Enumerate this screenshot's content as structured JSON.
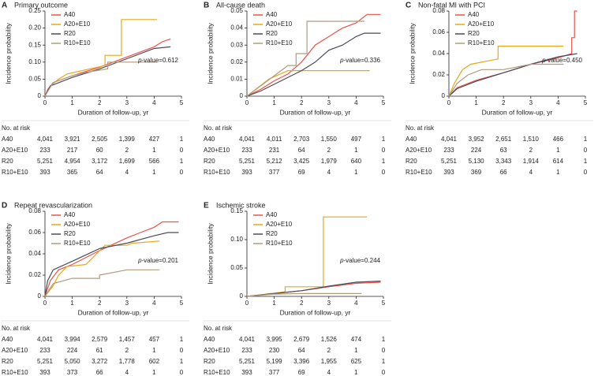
{
  "chart_data": [
    {
      "type": "line",
      "panel": "A",
      "title": "Primary outcome",
      "ylabel": "Incidence probability",
      "xlabel": "Duration of follow-up, yr",
      "xlim": [
        0,
        5
      ],
      "ylim": [
        0,
        0.25
      ],
      "xticks": [
        0,
        1,
        2,
        3,
        4,
        5
      ],
      "yticks": [
        0,
        0.05,
        {
          "value": 0.1,
          "label": "0.10"
        },
        0.15,
        {
          "value": 0.2,
          "label": "0.20"
        },
        0.25
      ],
      "series": [
        {
          "name": "A40",
          "color": "#e8524a",
          "x": [
            0,
            0.1,
            0.3,
            1,
            2,
            3,
            4,
            4.3,
            4.6
          ],
          "values": [
            0,
            0.02,
            0.04,
            0.06,
            0.085,
            0.115,
            0.145,
            0.16,
            0.168
          ]
        },
        {
          "name": "A20+E10",
          "color": "#e6a817",
          "x": [
            0,
            0.2,
            0.5,
            0.8,
            2.2,
            2.2,
            2.8,
            2.8,
            4.1
          ],
          "values": [
            0,
            0.03,
            0.05,
            0.065,
            0.09,
            0.12,
            0.12,
            0.225,
            0.225
          ]
        },
        {
          "name": "R20",
          "color": "#4a4a55",
          "x": [
            0,
            0.2,
            1,
            2,
            3,
            4,
            4.6
          ],
          "values": [
            0,
            0.03,
            0.055,
            0.08,
            0.11,
            0.14,
            0.145
          ]
        },
        {
          "name": "R10+E10",
          "color": "#b09a7e",
          "x": [
            0,
            0.3,
            1,
            1.5,
            2.3,
            2.3,
            4.1
          ],
          "values": [
            0,
            0.04,
            0.06,
            0.07,
            0.08,
            0.1,
            0.1
          ]
        }
      ],
      "annotation_italic": "p",
      "annotation": "-value=0.612",
      "risk_table": {
        "title": "No. at risk",
        "rows": [
          {
            "name": "A40",
            "values": [
              "4,041",
              "3,921",
              "2,505",
              "1,399",
              "427",
              "1"
            ]
          },
          {
            "name": "A20+E10",
            "values": [
              "233",
              "217",
              "60",
              "2",
              "1",
              "0"
            ]
          },
          {
            "name": "R20",
            "values": [
              "5,251",
              "4,954",
              "3,172",
              "1,699",
              "566",
              "1"
            ]
          },
          {
            "name": "R10+E10",
            "values": [
              "393",
              "365",
              "64",
              "4",
              "1",
              "0"
            ]
          }
        ]
      }
    },
    {
      "type": "line",
      "panel": "B",
      "title": "All-cause death",
      "ylabel": "Incidence probability",
      "xlabel": "Duration of follow-up, yr",
      "xlim": [
        0,
        5
      ],
      "ylim": [
        0,
        0.05
      ],
      "xticks": [
        0,
        1,
        2,
        3,
        4,
        5
      ],
      "yticks": [
        0,
        0.01,
        0.02,
        0.03,
        0.04,
        0.05
      ],
      "series": [
        {
          "name": "A40",
          "color": "#e8524a",
          "x": [
            0,
            0.5,
            1,
            1.5,
            2,
            2.5,
            3,
            3.5,
            4,
            4.4,
            4.9
          ],
          "values": [
            0,
            0.004,
            0.009,
            0.013,
            0.02,
            0.03,
            0.035,
            0.04,
            0.043,
            0.048,
            0.048
          ]
        },
        {
          "name": "A20+E10",
          "color": "#e6a817",
          "x": [
            0,
            0.4,
            0.8,
            1.5,
            4.5
          ],
          "values": [
            0,
            0.005,
            0.01,
            0.015,
            0.015
          ]
        },
        {
          "name": "R20",
          "color": "#4a4a55",
          "x": [
            0,
            0.5,
            1,
            2,
            2.5,
            3,
            3.5,
            4,
            4.3,
            4.9
          ],
          "values": [
            0,
            0.003,
            0.007,
            0.015,
            0.02,
            0.027,
            0.03,
            0.035,
            0.037,
            0.037
          ]
        },
        {
          "name": "R10+E10",
          "color": "#b09a7e",
          "x": [
            0,
            0.5,
            1,
            1.5,
            1.8,
            1.8,
            2.2,
            2.2,
            4.3
          ],
          "values": [
            0,
            0.006,
            0.012,
            0.018,
            0.018,
            0.025,
            0.025,
            0.044,
            0.044
          ]
        }
      ],
      "annotation_italic": "p",
      "annotation": "-value=0.336",
      "risk_table": {
        "title": "No. at risk",
        "rows": [
          {
            "name": "A40",
            "values": [
              "4,041",
              "4,011",
              "2,703",
              "1,550",
              "497",
              "1"
            ]
          },
          {
            "name": "A20+E10",
            "values": [
              "233",
              "231",
              "64",
              "2",
              "1",
              "0"
            ]
          },
          {
            "name": "R20",
            "values": [
              "5,251",
              "5,212",
              "3,425",
              "1,979",
              "640",
              "1"
            ]
          },
          {
            "name": "R10+E10",
            "values": [
              "393",
              "377",
              "69",
              "4",
              "1",
              "0"
            ]
          }
        ]
      }
    },
    {
      "type": "line",
      "panel": "C",
      "title": "Non-fatal MI with PCI",
      "ylabel": "Incidence probability",
      "xlabel": "Duration of follow-up, yr",
      "xlim": [
        0,
        5
      ],
      "ylim": [
        0,
        0.08
      ],
      "xticks": [
        0,
        1,
        2,
        3,
        4,
        5
      ],
      "yticks": [
        0,
        0.02,
        0.04,
        0.06,
        0.08
      ],
      "series": [
        {
          "name": "A40",
          "color": "#e8524a",
          "x": [
            0,
            0.3,
            1,
            2,
            3,
            4,
            4.5,
            4.5,
            4.6,
            4.6,
            4.7
          ],
          "values": [
            0,
            0.008,
            0.015,
            0.022,
            0.03,
            0.036,
            0.04,
            0.055,
            0.055,
            0.08,
            0.08
          ]
        },
        {
          "name": "A20+E10",
          "color": "#e6a817",
          "x": [
            0,
            0.2,
            0.5,
            0.8,
            1.8,
            1.8,
            4.2
          ],
          "values": [
            0,
            0.012,
            0.025,
            0.03,
            0.035,
            0.047,
            0.047
          ]
        },
        {
          "name": "R20",
          "color": "#4a4a55",
          "x": [
            0,
            0.3,
            1,
            2,
            3,
            4,
            4.7
          ],
          "values": [
            0,
            0.007,
            0.014,
            0.022,
            0.03,
            0.037,
            0.04
          ]
        },
        {
          "name": "R10+E10",
          "color": "#b09a7e",
          "x": [
            0,
            0.3,
            0.7,
            1.2,
            2,
            3,
            4.2
          ],
          "values": [
            0,
            0.012,
            0.02,
            0.025,
            0.025,
            0.03,
            0.03
          ]
        }
      ],
      "annotation_italic": "p",
      "annotation": "-value=0.450",
      "risk_table": {
        "title": "No. at risk",
        "rows": [
          {
            "name": "A40",
            "values": [
              "4,041",
              "3,952",
              "2,651",
              "1,510",
              "466",
              "1"
            ]
          },
          {
            "name": "A20+E10",
            "values": [
              "233",
              "224",
              "63",
              "2",
              "1",
              "0"
            ]
          },
          {
            "name": "R20",
            "values": [
              "5,251",
              "5,130",
              "3,343",
              "1,914",
              "614",
              "1"
            ]
          },
          {
            "name": "R10+E10",
            "values": [
              "393",
              "369",
              "66",
              "4",
              "1",
              "0"
            ]
          }
        ]
      }
    },
    {
      "type": "line",
      "panel": "D",
      "title": "Repeat revascularization",
      "ylabel": "Incidence probability",
      "xlabel": "Duration of follow-up, yr",
      "xlim": [
        0,
        5
      ],
      "ylim": [
        0,
        0.08
      ],
      "xticks": [
        0,
        1,
        2,
        3,
        4,
        5
      ],
      "yticks": [
        0,
        0.02,
        0.04,
        0.06,
        0.08
      ],
      "series": [
        {
          "name": "A40",
          "color": "#e8524a",
          "x": [
            0,
            0.2,
            0.5,
            1,
            2,
            3,
            3.5,
            4,
            4.3,
            4.9
          ],
          "values": [
            0,
            0.015,
            0.025,
            0.03,
            0.043,
            0.055,
            0.06,
            0.065,
            0.07,
            0.07
          ]
        },
        {
          "name": "A20+E10",
          "color": "#e6a817",
          "x": [
            0,
            0.3,
            0.5,
            0.8,
            1.5,
            2.2,
            3,
            3.2,
            4.2
          ],
          "values": [
            0,
            0.01,
            0.02,
            0.028,
            0.03,
            0.048,
            0.048,
            0.05,
            0.052
          ]
        },
        {
          "name": "R20",
          "color": "#4a4a55",
          "x": [
            0,
            0.1,
            0.3,
            1,
            2,
            3,
            4,
            4.5,
            4.9
          ],
          "values": [
            0,
            0.015,
            0.025,
            0.033,
            0.045,
            0.05,
            0.057,
            0.06,
            0.06
          ]
        },
        {
          "name": "R10+E10",
          "color": "#b09a7e",
          "x": [
            0,
            0.3,
            1,
            2,
            2,
            3,
            4.2
          ],
          "values": [
            0,
            0.012,
            0.017,
            0.017,
            0.02,
            0.025,
            0.025
          ]
        }
      ],
      "annotation_italic": "p",
      "annotation": "-value=0.201",
      "risk_table": {
        "title": "No. at risk",
        "rows": [
          {
            "name": "A40",
            "values": [
              "4,041",
              "3,994",
              "2,579",
              "1,457",
              "457",
              "1"
            ]
          },
          {
            "name": "A20+E10",
            "values": [
              "233",
              "224",
              "61",
              "2",
              "1",
              "0"
            ]
          },
          {
            "name": "R20",
            "values": [
              "5,251",
              "5,050",
              "3,272",
              "1,778",
              "602",
              "1"
            ]
          },
          {
            "name": "R10+E10",
            "values": [
              "393",
              "373",
              "66",
              "4",
              "1",
              "0"
            ]
          }
        ]
      }
    },
    {
      "type": "line",
      "panel": "E",
      "title": "Ischemic stroke",
      "ylabel": "Incidence probability",
      "xlabel": "Duration of follow-up, yr",
      "xlim": [
        0,
        5
      ],
      "ylim": [
        0,
        0.15
      ],
      "xticks": [
        0,
        1,
        2,
        3,
        4,
        5
      ],
      "yticks": [
        0,
        0.05,
        {
          "value": 0.1,
          "label": "0.10"
        },
        0.15
      ],
      "series": [
        {
          "name": "A40",
          "color": "#e8524a",
          "x": [
            0,
            1,
            2,
            3,
            4,
            4.9
          ],
          "values": [
            0,
            0.005,
            0.01,
            0.017,
            0.023,
            0.025
          ]
        },
        {
          "name": "A20+E10",
          "color": "#e6a817",
          "x": [
            0,
            1.4,
            1.4,
            2.8,
            2.8,
            4.4
          ],
          "values": [
            0,
            0.008,
            0.017,
            0.017,
            0.14,
            0.14
          ]
        },
        {
          "name": "R20",
          "color": "#4a4a55",
          "x": [
            0,
            1,
            2,
            3,
            4,
            4.9
          ],
          "values": [
            0,
            0.005,
            0.01,
            0.018,
            0.025,
            0.027
          ]
        },
        {
          "name": "R10+E10",
          "color": "#b09a7e",
          "x": [
            0,
            1,
            2,
            3,
            4.2
          ],
          "values": [
            0,
            0.004,
            0.005,
            0.005,
            0.005
          ]
        }
      ],
      "annotation_italic": "p",
      "annotation": "-value=0.244",
      "risk_table": {
        "title": "No. at risk",
        "rows": [
          {
            "name": "A40",
            "values": [
              "4,041",
              "3,995",
              "2,679",
              "1,526",
              "474",
              "1"
            ]
          },
          {
            "name": "A20+E10",
            "values": [
              "233",
              "230",
              "64",
              "2",
              "1",
              "0"
            ]
          },
          {
            "name": "R20",
            "values": [
              "5,251",
              "5,199",
              "3,396",
              "1,955",
              "625",
              "1"
            ]
          },
          {
            "name": "R10+E10",
            "values": [
              "393",
              "377",
              "69",
              "4",
              "1",
              "0"
            ]
          }
        ]
      }
    }
  ]
}
